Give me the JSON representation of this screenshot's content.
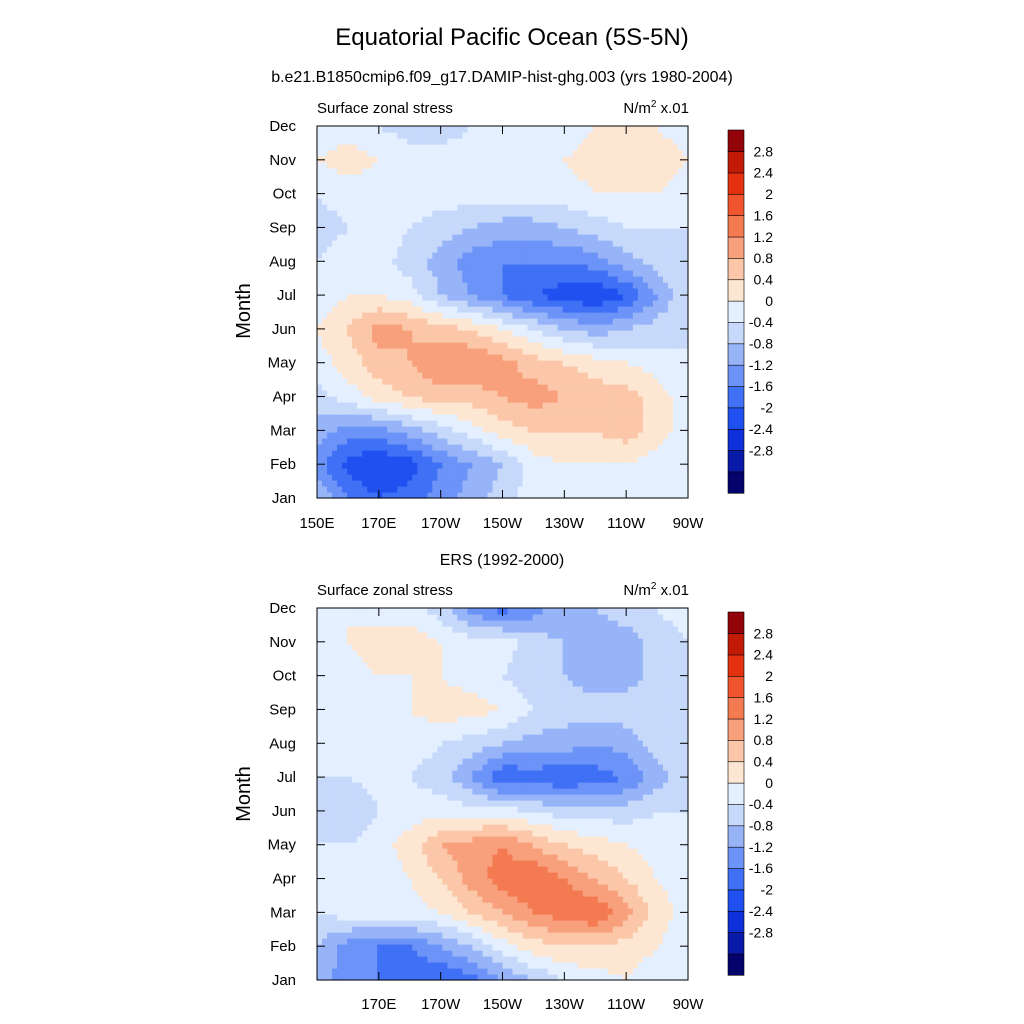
{
  "figure": {
    "title": "Equatorial Pacific Ocean (5S-5N)"
  },
  "chart_data": [
    {
      "type": "heatmap",
      "title": "b.e21.B1850cmip6.f09_g17.DAMIP-hist-ghg.003 (yrs 1980-2004)",
      "left_label": "Surface zonal stress",
      "units_label": "N/m",
      "units_exp": "2",
      "units_scale": " x.01",
      "ylabel": "Month",
      "xticks": [
        "150E",
        "170E",
        "170W",
        "150W",
        "130W",
        "110W",
        "90W"
      ],
      "yticks": [
        "Jan",
        "Feb",
        "Mar",
        "Apr",
        "May",
        "Jun",
        "Jul",
        "Aug",
        "Sep",
        "Oct",
        "Nov",
        "Dec"
      ],
      "xlim": [
        150,
        270
      ],
      "x_grid": [
        150,
        160,
        170,
        180,
        190,
        200,
        210,
        220,
        230,
        240,
        250,
        260,
        270
      ],
      "values": [
        [
          -0.4,
          -1.2,
          -1.6,
          -1.4,
          -1.0,
          -0.6,
          -0.2,
          0.2,
          0.4,
          0.4,
          0.2,
          0.0,
          0.0
        ],
        [
          -1.0,
          -1.8,
          -2.0,
          -1.8,
          -1.2,
          -0.8,
          -0.4,
          0.2,
          0.4,
          0.4,
          0.4,
          0.2,
          0.0
        ],
        [
          -0.6,
          -1.0,
          -1.0,
          -0.6,
          -0.2,
          0.2,
          0.6,
          0.8,
          0.8,
          0.8,
          1.0,
          0.6,
          0.2
        ],
        [
          -0.2,
          0.2,
          0.6,
          0.8,
          1.0,
          1.0,
          1.2,
          1.4,
          1.2,
          1.0,
          1.0,
          0.6,
          0.2
        ],
        [
          0.2,
          0.6,
          1.0,
          1.2,
          1.6,
          1.6,
          1.4,
          1.0,
          0.8,
          0.6,
          0.4,
          0.2,
          0.0
        ],
        [
          0.4,
          0.8,
          1.4,
          1.2,
          1.0,
          0.8,
          0.4,
          0.0,
          -0.4,
          -0.6,
          -0.4,
          -0.2,
          0.0
        ],
        [
          0.2,
          0.4,
          0.4,
          0.2,
          -0.4,
          -0.8,
          -1.2,
          -1.6,
          -1.8,
          -2.0,
          -1.6,
          -0.8,
          0.0
        ],
        [
          0.0,
          0.2,
          0.2,
          -0.2,
          -0.6,
          -1.0,
          -1.2,
          -1.2,
          -1.2,
          -1.0,
          -0.6,
          -0.2,
          0.0
        ],
        [
          -0.2,
          0.0,
          0.2,
          0.0,
          -0.2,
          -0.4,
          -0.6,
          -0.6,
          -0.4,
          -0.2,
          0.0,
          0.0,
          0.0
        ],
        [
          0.0,
          0.2,
          0.2,
          0.2,
          0.2,
          0.2,
          0.2,
          0.2,
          0.2,
          0.4,
          0.4,
          0.4,
          0.2
        ],
        [
          0.4,
          0.6,
          0.4,
          0.2,
          0.2,
          0.2,
          0.2,
          0.2,
          0.4,
          0.6,
          0.6,
          0.6,
          0.4
        ],
        [
          0.2,
          0.2,
          0.0,
          -0.2,
          -0.2,
          0.0,
          0.0,
          0.2,
          0.2,
          0.4,
          0.4,
          0.4,
          0.2
        ]
      ],
      "colorbar_levels": [
        "2.8",
        "2.4",
        "2",
        "1.6",
        "1.2",
        "0.8",
        "0.4",
        "0",
        "-0.4",
        "-0.8",
        "-1.2",
        "-1.6",
        "-2",
        "-2.4",
        "-2.8"
      ]
    },
    {
      "type": "heatmap",
      "title": "ERS (1992-2000)",
      "left_label": "Surface zonal stress",
      "units_label": "N/m",
      "units_exp": "2",
      "units_scale": " x.01",
      "ylabel": "Month",
      "xticks": [
        "170E",
        "170W",
        "150W",
        "130W",
        "110W",
        "90W"
      ],
      "yticks": [
        "Jan",
        "Feb",
        "Mar",
        "Apr",
        "May",
        "Jun",
        "Jul",
        "Aug",
        "Sep",
        "Oct",
        "Nov",
        "Dec"
      ],
      "xlim": [
        150,
        270
      ],
      "x_grid": [
        150,
        160,
        170,
        180,
        190,
        200,
        210,
        220,
        230,
        240,
        250,
        260,
        270
      ],
      "values": [
        [
          -0.6,
          -1.0,
          -1.2,
          -1.6,
          -1.6,
          -1.4,
          -0.8,
          -0.4,
          0.0,
          0.2,
          0.4,
          0.2,
          0.2
        ],
        [
          -0.4,
          -1.0,
          -1.2,
          -1.2,
          -0.8,
          -0.4,
          0.2,
          0.6,
          0.8,
          0.8,
          0.6,
          0.4,
          0.2
        ],
        [
          0.0,
          0.2,
          0.2,
          0.2,
          0.4,
          0.8,
          1.2,
          1.6,
          1.8,
          2.0,
          1.4,
          0.6,
          0.2
        ],
        [
          0.2,
          0.2,
          0.2,
          0.4,
          0.8,
          1.4,
          1.8,
          2.0,
          1.6,
          1.2,
          0.8,
          0.4,
          0.2
        ],
        [
          0.0,
          0.0,
          0.2,
          0.6,
          1.2,
          1.4,
          1.6,
          1.2,
          0.8,
          0.6,
          0.4,
          0.2,
          0.0
        ],
        [
          -0.2,
          -0.4,
          0.0,
          0.2,
          0.2,
          0.2,
          0.2,
          0.0,
          -0.2,
          -0.2,
          -0.2,
          0.0,
          0.0
        ],
        [
          0.0,
          0.0,
          0.2,
          0.0,
          -0.2,
          -0.8,
          -1.6,
          -1.4,
          -1.6,
          -1.4,
          -1.2,
          -0.6,
          0.0
        ],
        [
          0.0,
          0.2,
          0.2,
          0.2,
          0.0,
          -0.2,
          -0.4,
          -0.6,
          -0.6,
          -0.8,
          -0.6,
          -0.2,
          0.0
        ],
        [
          0.2,
          0.2,
          0.2,
          0.4,
          0.6,
          0.6,
          0.4,
          0.0,
          -0.2,
          -0.2,
          -0.2,
          0.0,
          0.0
        ],
        [
          0.2,
          0.2,
          0.4,
          0.4,
          0.4,
          0.2,
          0.0,
          -0.2,
          -0.4,
          -0.6,
          -0.6,
          -0.2,
          0.0
        ],
        [
          0.2,
          0.4,
          0.6,
          0.6,
          0.4,
          0.2,
          0.2,
          -0.2,
          -0.4,
          -0.6,
          -0.6,
          -0.2,
          0.0
        ],
        [
          0.2,
          0.4,
          0.2,
          0.2,
          -0.2,
          -1.0,
          -1.4,
          -1.0,
          -0.6,
          -0.4,
          -0.2,
          0.0,
          0.2
        ]
      ],
      "colorbar_levels": [
        "2.8",
        "2.4",
        "2",
        "1.6",
        "1.2",
        "0.8",
        "0.4",
        "0",
        "-0.4",
        "-0.8",
        "-1.2",
        "-1.6",
        "-2",
        "-2.4",
        "-2.8"
      ]
    }
  ],
  "colorscale": [
    "#04026b",
    "#0a1aa8",
    "#0f2fd8",
    "#2050f0",
    "#3f70f5",
    "#6c93f7",
    "#98b4f8",
    "#c6d9fb",
    "#e4efff",
    "#fde6d2",
    "#fbc7a8",
    "#f8a07c",
    "#f47a52",
    "#f1552d",
    "#e43211",
    "#c11b08",
    "#92040a"
  ]
}
